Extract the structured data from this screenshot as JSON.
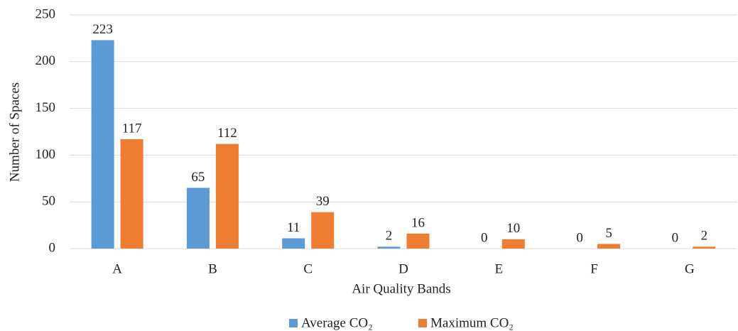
{
  "chart_data": {
    "type": "bar",
    "x_label": "Air Quality Bands",
    "y_label": "Number of Spaces",
    "categories": [
      "A",
      "B",
      "C",
      "D",
      "E",
      "F",
      "G"
    ],
    "series": [
      {
        "name": "Average CO₂",
        "color": "#5b9bd5",
        "values": [
          223,
          65,
          11,
          2,
          0,
          0,
          0
        ]
      },
      {
        "name": "Maximum CO₂",
        "color": "#ed7d31",
        "values": [
          117,
          112,
          39,
          16,
          10,
          5,
          2
        ]
      }
    ],
    "ylim": [
      0,
      250
    ],
    "yticks": [
      0,
      50,
      100,
      150,
      200,
      250
    ],
    "grid": true,
    "legend": "bottom"
  }
}
